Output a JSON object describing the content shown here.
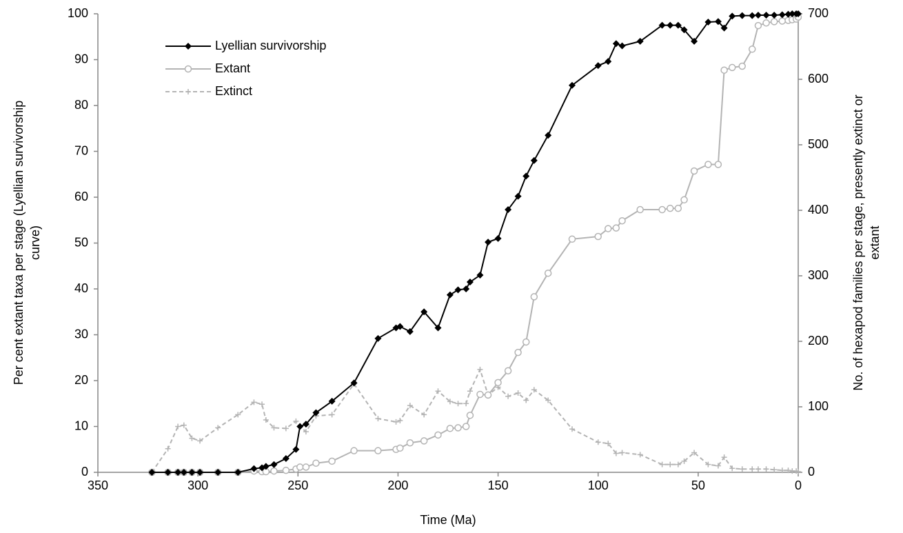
{
  "chart_data": {
    "type": "line",
    "xlabel": "Time (Ma)",
    "ylabel": [
      "Per cent extant taxa per stage (Lyellian survivorship",
      "curve)"
    ],
    "y2label": [
      "No. of hexapod families per stage, presently extinct or",
      "extant"
    ],
    "xlim": [
      350,
      0
    ],
    "xticks": [
      350,
      300,
      250,
      200,
      150,
      100,
      50,
      0
    ],
    "ylim": [
      0,
      100
    ],
    "yticks": [
      0,
      10,
      20,
      30,
      40,
      50,
      60,
      70,
      80,
      90,
      100
    ],
    "y2lim": [
      0,
      700
    ],
    "y2ticks": [
      0,
      100,
      200,
      300,
      400,
      500,
      600,
      700
    ],
    "legend": "upper left",
    "x": [
      323,
      315,
      310,
      307,
      303,
      299,
      290,
      280,
      272,
      268,
      266,
      262,
      256,
      251,
      249,
      246,
      241,
      233,
      222,
      210,
      201,
      199,
      194,
      187,
      180,
      174,
      170,
      166,
      164,
      159,
      155,
      150,
      145,
      140,
      136,
      132,
      125,
      113,
      100,
      95,
      91,
      88,
      79,
      68,
      64,
      60,
      57,
      52,
      45,
      40,
      37,
      33,
      28,
      23,
      20,
      16,
      12,
      8,
      5,
      3,
      1,
      0
    ],
    "series": [
      {
        "name": "Lyellian survivorship",
        "color": "#000000",
        "marker": "diamond",
        "dash": false,
        "values": [
          0,
          0,
          0,
          0,
          0,
          0,
          0,
          0,
          0.8,
          1,
          1.3,
          1.7,
          3,
          5,
          10,
          10.5,
          13,
          15.5,
          19.5,
          29.2,
          31.5,
          31.8,
          30.7,
          35,
          31.5,
          38.7,
          39.8,
          40,
          41.5,
          43,
          50.2,
          51,
          57.3,
          60.2,
          64.6,
          68,
          73.5,
          84.4,
          88.7,
          89.6,
          93.5,
          93,
          94,
          97.5,
          97.5,
          97.5,
          96.5,
          94,
          98.2,
          98.3,
          96.9,
          99.5,
          99.6,
          99.6,
          99.7,
          99.7,
          99.7,
          99.8,
          99.9,
          100,
          100,
          100
        ]
      },
      {
        "name": "Extant",
        "color": "#b3b3b3",
        "marker": "circle",
        "dash": false,
        "axis": "y2",
        "values": [
          0,
          0,
          0,
          0,
          0,
          0,
          0,
          0,
          2,
          1,
          1,
          2,
          3,
          5,
          8,
          8,
          14,
          17,
          33,
          33,
          35,
          37,
          45,
          48,
          57,
          67,
          68,
          70,
          87,
          119,
          118,
          137,
          155,
          183,
          199,
          268,
          304,
          356,
          360,
          372,
          373,
          384,
          401,
          401,
          403,
          403,
          416,
          460,
          470,
          470,
          614,
          618,
          620,
          646,
          682,
          686,
          688,
          689,
          690,
          691,
          692,
          695
        ]
      },
      {
        "name": "Extinct",
        "color": "#b3b3b3",
        "marker": "plus",
        "dash": true,
        "axis": "y2",
        "values": [
          0,
          36,
          70,
          72,
          52,
          48,
          68,
          88,
          107,
          104,
          80,
          68,
          67,
          78,
          70,
          62,
          86,
          88,
          135,
          82,
          77,
          79,
          102,
          88,
          124,
          108,
          105,
          105,
          124,
          157,
          118,
          130,
          116,
          121,
          110,
          126,
          110,
          66,
          46,
          44,
          29,
          30,
          27,
          12,
          12,
          12,
          17,
          30,
          12,
          10,
          23,
          6,
          5,
          5,
          5,
          5,
          4,
          3,
          3,
          2,
          2,
          1
        ]
      }
    ]
  }
}
